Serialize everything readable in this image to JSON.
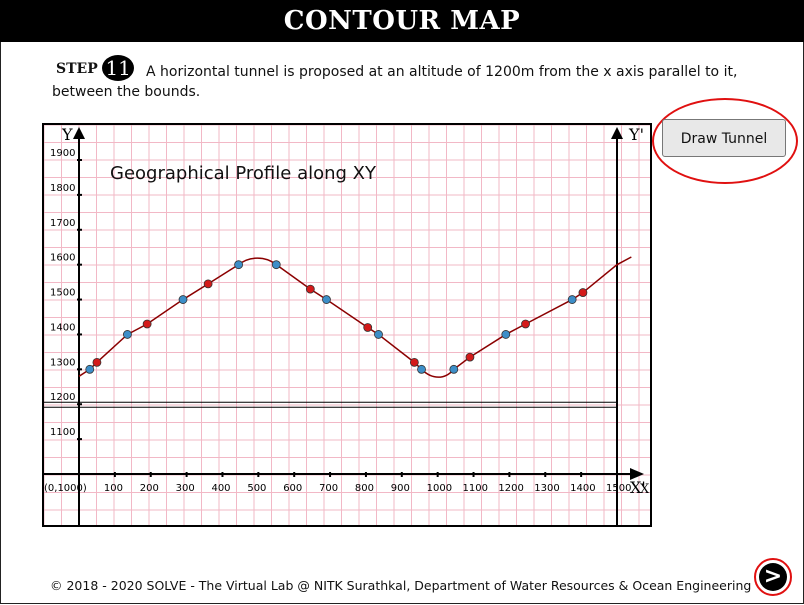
{
  "header": {
    "title": "CONTOUR MAP"
  },
  "step": {
    "label": "STEP",
    "number": "11",
    "text": "A horizontal tunnel is proposed at an altitude of 1200m from the x axis parallel to it, between the bounds."
  },
  "buttons": {
    "draw_tunnel": "Draw Tunnel",
    "next": ">"
  },
  "footer": {
    "text": "© 2018 - 2020 SOLVE - The Virtual Lab @ NITK Surathkal, Department of Water Resources & Ocean Engineering"
  },
  "colors": {
    "grid": "#f2b8c6",
    "profile": "#8b0000",
    "point_red": "#d41a1a",
    "point_blue": "#3d8ec8",
    "alert": "#e01010"
  },
  "chart_data": {
    "type": "line",
    "title": "Geographical Profile along XY",
    "y_axis_label": "Y",
    "x_axis_label": "X",
    "y_prime_label": "Y'",
    "x_prime_label": "X'",
    "origin_label": "(0,1000)",
    "xlim": [
      0,
      1500
    ],
    "ylim": [
      1000,
      1900
    ],
    "x_ticks": [
      100,
      200,
      300,
      400,
      500,
      600,
      700,
      800,
      900,
      1000,
      1100,
      1200,
      1300,
      1400,
      1500
    ],
    "y_ticks": [
      1100,
      1200,
      1300,
      1400,
      1500,
      1600,
      1700,
      1800,
      1900
    ],
    "tunnel_altitude": 1200,
    "series": [
      {
        "points": [
          {
            "x": 30,
            "y": 1300,
            "c": "blue"
          },
          {
            "x": 50,
            "y": 1320,
            "c": "red"
          },
          {
            "x": 135,
            "y": 1400,
            "c": "blue"
          },
          {
            "x": 190,
            "y": 1430,
            "c": "red"
          },
          {
            "x": 290,
            "y": 1500,
            "c": "blue"
          },
          {
            "x": 360,
            "y": 1545,
            "c": "red"
          },
          {
            "x": 445,
            "y": 1600,
            "c": "blue"
          },
          {
            "x": 550,
            "y": 1600,
            "c": "blue"
          },
          {
            "x": 645,
            "y": 1530,
            "c": "red"
          },
          {
            "x": 690,
            "y": 1500,
            "c": "blue"
          },
          {
            "x": 805,
            "y": 1420,
            "c": "red"
          },
          {
            "x": 835,
            "y": 1400,
            "c": "blue"
          },
          {
            "x": 935,
            "y": 1320,
            "c": "red"
          },
          {
            "x": 955,
            "y": 1300,
            "c": "blue"
          },
          {
            "x": 1045,
            "y": 1300,
            "c": "blue"
          },
          {
            "x": 1090,
            "y": 1335,
            "c": "red"
          },
          {
            "x": 1190,
            "y": 1400,
            "c": "blue"
          },
          {
            "x": 1245,
            "y": 1430,
            "c": "red"
          },
          {
            "x": 1375,
            "y": 1500,
            "c": "blue"
          },
          {
            "x": 1405,
            "y": 1520,
            "c": "red"
          }
        ]
      }
    ]
  }
}
